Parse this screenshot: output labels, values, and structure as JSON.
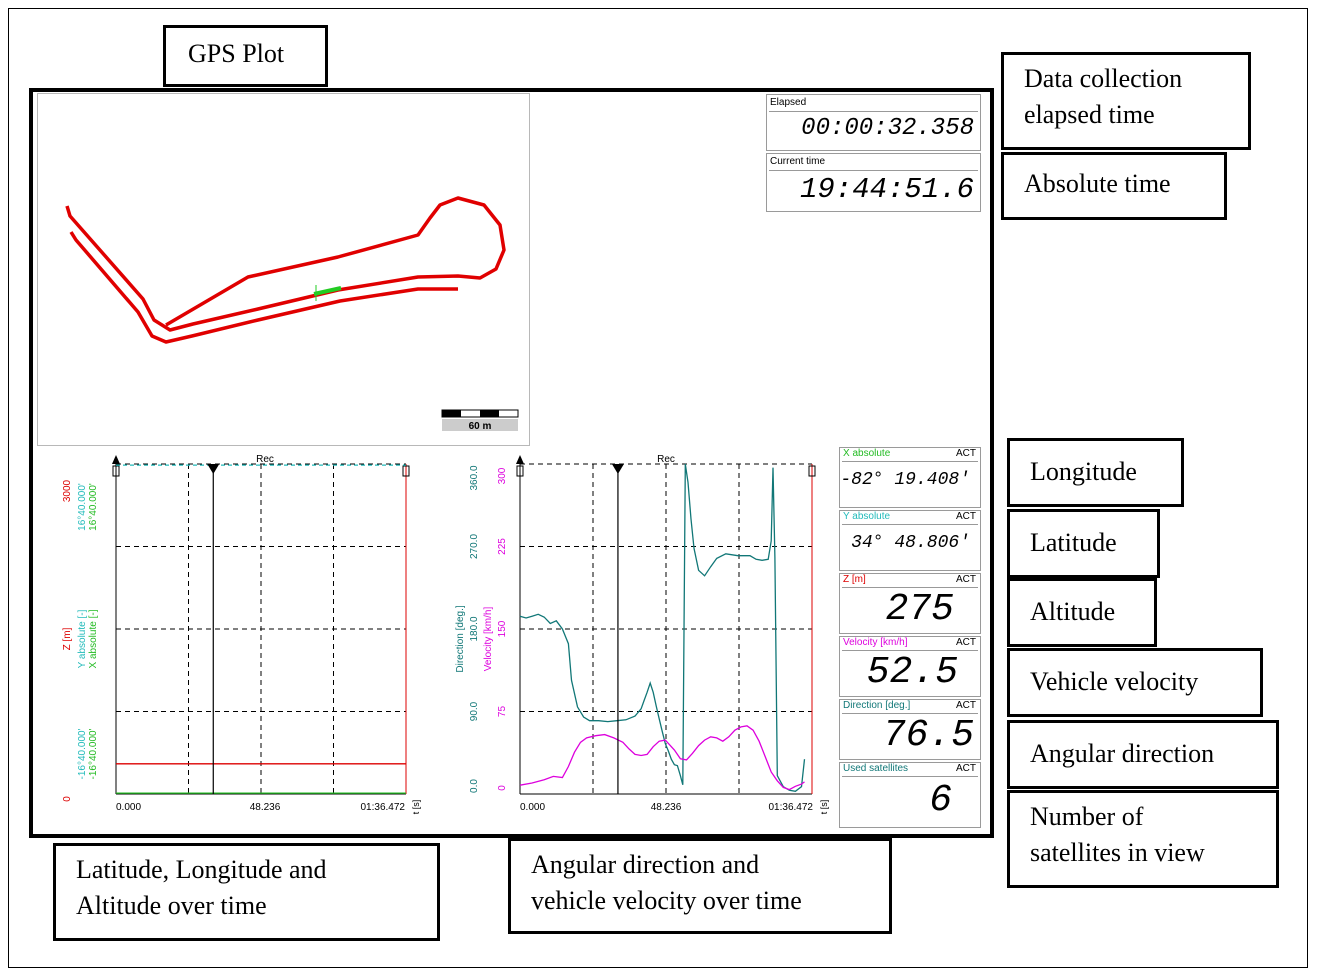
{
  "callouts": {
    "gps_plot": "GPS Plot",
    "elapsed": [
      "Data collection",
      "elapsed time"
    ],
    "absolute": "Absolute time",
    "longitude": "Longitude",
    "latitude": "Latitude",
    "altitude": "Altitude",
    "velocity": "Vehicle velocity",
    "direction": "Angular direction",
    "satellites": [
      "Number of",
      "satellites in view"
    ],
    "lla_time": [
      "Latitude, Longitude and",
      "Altitude over time"
    ],
    "dir_vel_time": [
      "Angular direction and",
      "vehicle velocity over time"
    ]
  },
  "gps_plot": {
    "scale_label": "60 m",
    "track_color": "#e00000",
    "marker_color": "#22cc22"
  },
  "time_displays": {
    "elapsed": {
      "label": "Elapsed",
      "value": "00:00:32.358"
    },
    "current": {
      "label": "Current time",
      "value": "19:44:51.6"
    }
  },
  "panels": [
    {
      "label": "X absolute",
      "act": "ACT",
      "value": "-82° 19.408'",
      "color": "#22bb22"
    },
    {
      "label": "Y absolute",
      "act": "ACT",
      "value": "34° 48.806'",
      "color": "#22bbbb"
    },
    {
      "label": "Z [m]",
      "act": "ACT",
      "value": "275",
      "color": "#dd0000"
    },
    {
      "label": "Velocity [km/h]",
      "act": "ACT",
      "value": "52.5",
      "color": "#dd00dd"
    },
    {
      "label": "Direction [deg.]",
      "act": "ACT",
      "value": "76.5",
      "color": "#117777"
    },
    {
      "label": "Used satellites",
      "act": "ACT",
      "value": "6",
      "color": "#117777"
    }
  ],
  "chart_data": [
    {
      "type": "line",
      "title": "Rec",
      "x_ticks": [
        "0.000",
        "48.236",
        "01:36.472"
      ],
      "x_unit": "t [s]",
      "xlim": [
        0,
        96.472
      ],
      "cursor_x": 32.358,
      "axes": [
        {
          "label": "Z [m]",
          "color": "#dd0000",
          "ticks": [
            "0",
            "3000"
          ],
          "ylim": [
            0,
            3000
          ]
        },
        {
          "label": "Y absolute [-]",
          "color": "#22bbbb",
          "ticks": [
            "-16°40.000'",
            "16°40.000'"
          ]
        },
        {
          "label": "X absolute [-]",
          "color": "#22bb22",
          "ticks": [
            "-16°40.000'",
            "16°40.000'"
          ]
        }
      ],
      "series": [
        {
          "name": "Z [m]",
          "color": "#dd0000",
          "x": [
            0,
            96.472
          ],
          "y": [
            275,
            275
          ]
        },
        {
          "name": "Y absolute [-]",
          "color": "#22bbbb",
          "x": [
            0,
            96.472
          ],
          "y": [
            2990,
            2990
          ]
        },
        {
          "name": "X absolute [-]",
          "color": "#22bb22",
          "x": [
            0,
            96.472
          ],
          "y": [
            8,
            8
          ]
        }
      ]
    },
    {
      "type": "line",
      "title": "Rec",
      "x_ticks": [
        "0.000",
        "48.236",
        "01:36.472"
      ],
      "x_unit": "t [s]",
      "xlim": [
        0,
        96.472
      ],
      "cursor_x": 32.358,
      "axes": [
        {
          "label": "Direction [deg.]",
          "color": "#117777",
          "ticks": [
            "0.0",
            "90.0",
            "180.0",
            "270.0",
            "360.0"
          ],
          "ylim": [
            0,
            360
          ]
        },
        {
          "label": "Velocity [km/h]",
          "color": "#dd00dd",
          "ticks": [
            "0",
            "75",
            "150",
            "225",
            "300"
          ],
          "ylim": [
            0,
            300
          ]
        }
      ],
      "series": [
        {
          "name": "Direction [deg.]",
          "color": "#117777",
          "x": [
            0,
            2,
            4,
            6,
            8,
            10,
            12,
            14,
            16,
            17,
            19,
            21,
            23,
            26,
            29,
            32,
            35,
            38,
            40,
            41,
            42,
            43,
            44,
            45,
            46,
            47,
            48,
            49,
            50,
            51,
            52,
            53,
            53.8,
            54.6,
            55.5,
            56.5,
            57.5,
            59,
            61,
            63,
            65,
            68,
            72,
            76,
            78,
            80,
            82,
            83,
            83.6,
            84.2,
            85,
            87,
            89,
            91,
            93,
            94
          ],
          "y": [
            194,
            192,
            194,
            196,
            193,
            186,
            189,
            180,
            164,
            124,
            95,
            84,
            80,
            80,
            79,
            80,
            81,
            85,
            93,
            102,
            111,
            121,
            111,
            96,
            82,
            68,
            55,
            47,
            38,
            32,
            31,
            20,
            10,
            360,
            340,
            300,
            268,
            244,
            238,
            248,
            257,
            262,
            260,
            260,
            256,
            255,
            256,
            276,
            356,
            258,
            20,
            8,
            4,
            3,
            8,
            38
          ]
        },
        {
          "name": "Velocity [km/h]",
          "color": "#dd00dd",
          "x": [
            0,
            4,
            8,
            11,
            14,
            16,
            18,
            20,
            22,
            25,
            28,
            31,
            34,
            36,
            38,
            40,
            42,
            44,
            46,
            48,
            51,
            53,
            55,
            57,
            59,
            61,
            63,
            65,
            67,
            69,
            71,
            73,
            75,
            77,
            79,
            81,
            83,
            85,
            87,
            89,
            91,
            93,
            94
          ],
          "y": [
            8,
            10,
            13,
            16,
            15,
            25,
            38,
            47,
            51,
            53,
            54,
            51,
            47,
            41,
            36,
            35,
            36,
            43,
            48,
            49,
            40,
            32,
            31,
            37,
            44,
            49,
            52,
            51,
            48,
            52,
            58,
            61,
            62,
            58,
            48,
            34,
            20,
            12,
            6,
            4,
            7,
            9,
            11
          ]
        }
      ]
    }
  ]
}
